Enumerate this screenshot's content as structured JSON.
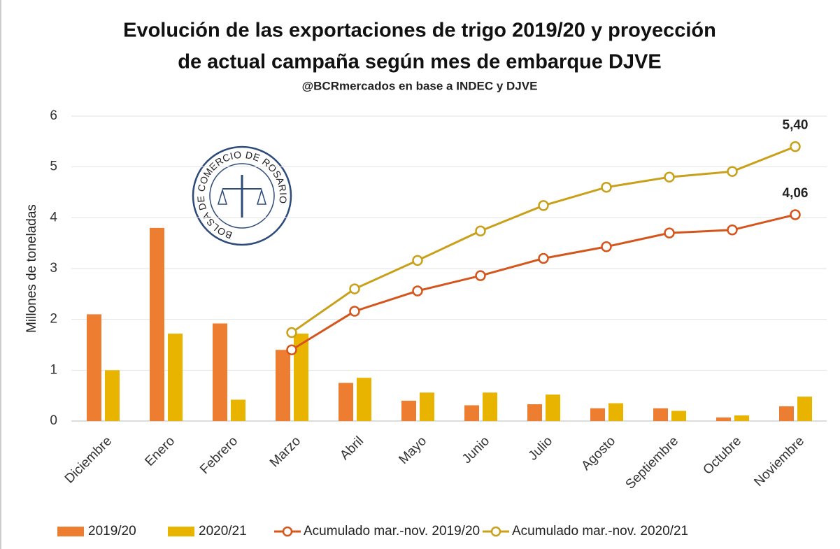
{
  "chart_data": {
    "type": "bar_line",
    "title": [
      "Evolución de las exportaciones de trigo 2019/20 y proyección",
      "de actual campaña según mes de embarque DJVE"
    ],
    "subtitle": "@BCRmercados en base a INDEC y DJVE",
    "y_label": "Millones de toneladas",
    "logo_text": "BOLSA DE COMERCIO DE ROSARIO",
    "categories": [
      "Diciembre",
      "Enero",
      "Febrero",
      "Marzo",
      "Abril",
      "Mayo",
      "Junio",
      "Julio",
      "Agosto",
      "Septiembre",
      "Octubre",
      "Noviembre"
    ],
    "series": [
      {
        "name": "2019/20",
        "kind": "bar",
        "color": "#ED7D31",
        "values": [
          2.1,
          3.8,
          1.92,
          1.4,
          0.75,
          0.4,
          0.31,
          0.33,
          0.25,
          0.25,
          0.07,
          0.29
        ]
      },
      {
        "name": "2020/21",
        "kind": "bar",
        "color": "#E8B400",
        "values": [
          1.0,
          1.72,
          0.42,
          1.72,
          0.85,
          0.56,
          0.56,
          0.52,
          0.35,
          0.2,
          0.11,
          0.48
        ]
      },
      {
        "name": "Acumulado mar.-nov. 2019/20",
        "kind": "line",
        "color": "#D4561C",
        "values": [
          null,
          null,
          null,
          1.4,
          2.16,
          2.56,
          2.86,
          3.2,
          3.43,
          3.7,
          3.76,
          4.06
        ],
        "value_labels": [
          null,
          null,
          null,
          null,
          null,
          null,
          null,
          null,
          null,
          null,
          null,
          "4,06"
        ]
      },
      {
        "name": "Acumulado mar.-nov. 2020/21",
        "kind": "line",
        "color": "#C9A01A",
        "values": [
          null,
          null,
          null,
          1.74,
          2.6,
          3.16,
          3.74,
          4.24,
          4.6,
          4.8,
          4.91,
          5.4
        ],
        "value_labels": [
          null,
          null,
          null,
          null,
          null,
          null,
          null,
          null,
          null,
          null,
          null,
          "5,40"
        ]
      }
    ],
    "ylim": [
      0,
      6
    ],
    "yticks": [
      0,
      1,
      2,
      3,
      4,
      5,
      6
    ],
    "grid": true
  }
}
